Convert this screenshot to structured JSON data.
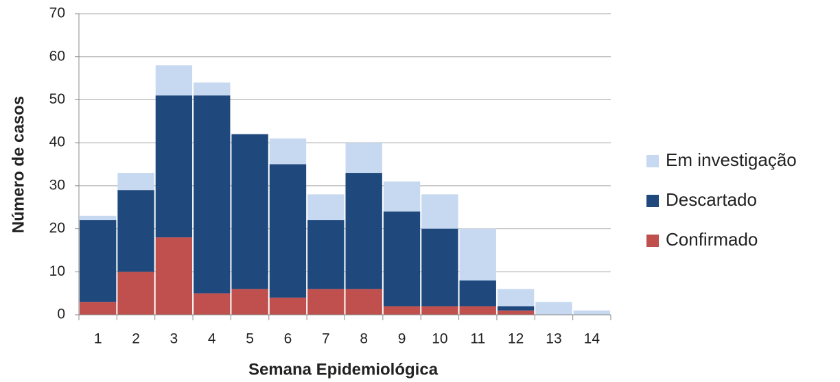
{
  "chart_data": {
    "type": "stacked-bar",
    "x_label": "Semana Epidemiológica",
    "y_label": "Número de casos",
    "categories": [
      "1",
      "2",
      "3",
      "4",
      "5",
      "6",
      "7",
      "8",
      "9",
      "10",
      "11",
      "12",
      "13",
      "14"
    ],
    "series": [
      {
        "name": "Confirmado",
        "color": "#c0504d",
        "values": [
          3,
          10,
          18,
          5,
          6,
          4,
          6,
          6,
          2,
          2,
          2,
          1,
          0,
          0
        ]
      },
      {
        "name": "Descartado",
        "color": "#1f497d",
        "values": [
          19,
          19,
          33,
          46,
          36,
          31,
          16,
          27,
          22,
          18,
          6,
          1,
          0,
          0
        ]
      },
      {
        "name": "Em investigação",
        "color": "#c6d9f1",
        "values": [
          1,
          4,
          7,
          3,
          0,
          6,
          6,
          7,
          7,
          8,
          12,
          4,
          3,
          1
        ]
      }
    ],
    "ylim": [
      0,
      70
    ],
    "yticks": [
      0,
      10,
      20,
      30,
      40,
      50,
      60,
      70
    ],
    "grid": true,
    "legend": "right"
  }
}
